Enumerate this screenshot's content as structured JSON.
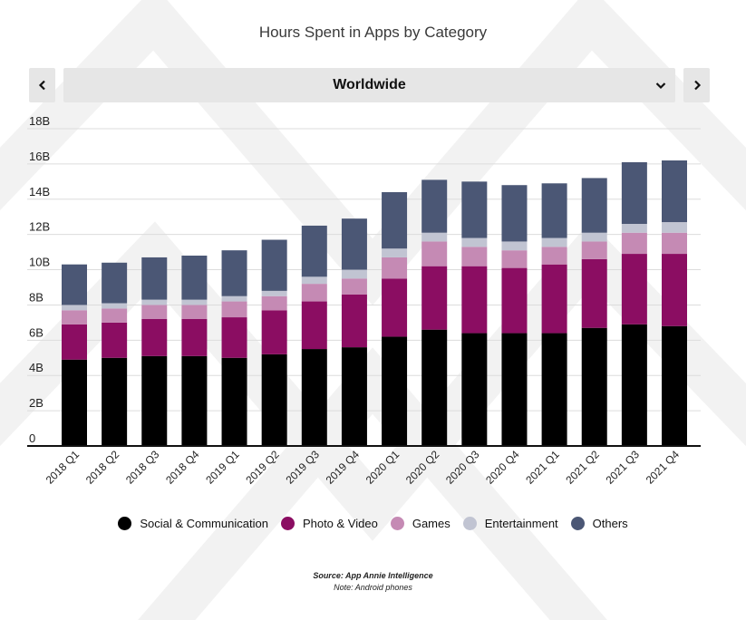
{
  "chart_data": {
    "type": "bar",
    "stacked": true,
    "title": "Hours Spent in Apps by Category",
    "categories": [
      "2018 Q1",
      "2018 Q2",
      "2018 Q3",
      "2018 Q4",
      "2019 Q1",
      "2019 Q2",
      "2019 Q3",
      "2019 Q4",
      "2020 Q1",
      "2020 Q2",
      "2020 Q3",
      "2020 Q4",
      "2021 Q1",
      "2021 Q2",
      "2021 Q3",
      "2021 Q4"
    ],
    "series": [
      {
        "name": "Social & Communication",
        "color": "#000000",
        "values": [
          4.9,
          5.0,
          5.1,
          5.1,
          5.0,
          5.2,
          5.5,
          5.6,
          6.2,
          6.6,
          6.4,
          6.4,
          6.4,
          6.7,
          6.9,
          6.8
        ]
      },
      {
        "name": "Photo & Video",
        "color": "#8b0d62",
        "values": [
          2.0,
          2.0,
          2.1,
          2.1,
          2.3,
          2.5,
          2.7,
          3.0,
          3.3,
          3.6,
          3.8,
          3.7,
          3.9,
          3.9,
          4.0,
          4.1
        ]
      },
      {
        "name": "Games",
        "color": "#c58ab4",
        "values": [
          0.8,
          0.8,
          0.8,
          0.8,
          0.9,
          0.8,
          1.0,
          0.9,
          1.2,
          1.4,
          1.1,
          1.0,
          1.0,
          1.0,
          1.2,
          1.2
        ]
      },
      {
        "name": "Entertainment",
        "color": "#c1c4d2",
        "values": [
          0.3,
          0.3,
          0.3,
          0.3,
          0.3,
          0.3,
          0.4,
          0.5,
          0.5,
          0.5,
          0.5,
          0.5,
          0.5,
          0.5,
          0.5,
          0.6
        ]
      },
      {
        "name": "Others",
        "color": "#4b5775",
        "values": [
          2.3,
          2.3,
          2.4,
          2.5,
          2.6,
          2.9,
          2.9,
          2.9,
          3.2,
          3.0,
          3.2,
          3.2,
          3.1,
          3.1,
          3.5,
          3.5
        ]
      }
    ],
    "y_ticks": [
      "0",
      "2B",
      "4B",
      "6B",
      "8B",
      "10B",
      "12B",
      "14B",
      "16B",
      "18B"
    ],
    "ylim": [
      0,
      18
    ],
    "grid": true,
    "legend_position": "bottom"
  },
  "header": {
    "title": "Hours Spent in Apps by Category",
    "region": "Worldwide",
    "prev_icon": "chevron-left-icon",
    "next_icon": "chevron-right-icon",
    "dropdown_icon": "chevron-down-icon"
  },
  "legend": [
    {
      "label": "Social & Communication",
      "color": "#000000"
    },
    {
      "label": "Photo & Video",
      "color": "#8b0d62"
    },
    {
      "label": "Games",
      "color": "#c58ab4"
    },
    {
      "label": "Entertainment",
      "color": "#c1c4d2"
    },
    {
      "label": "Others",
      "color": "#4b5775"
    }
  ],
  "footer": {
    "source": "Source: App Annie Intelligence",
    "note": "Note: Android phones"
  }
}
